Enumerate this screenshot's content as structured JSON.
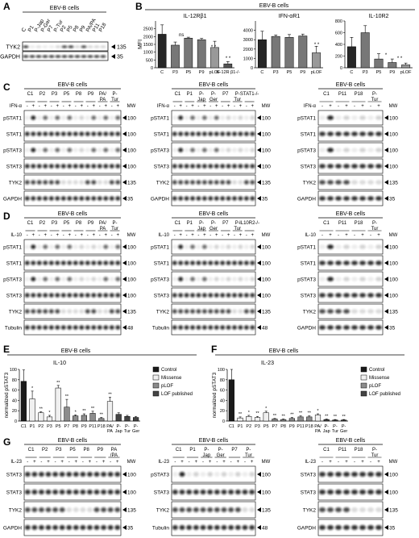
{
  "common": {
    "ebv_b_cells": "EBV-B cells",
    "mw": "MW",
    "ifn_alpha": "IFN-α",
    "il10": "IL-10",
    "il23": "IL-23",
    "plus": "+",
    "minus": "-"
  },
  "panels": {
    "A": {
      "label": "A",
      "title": "EBV-B cells",
      "lanes": [
        "C",
        "P1",
        "P-Jap",
        "P-Ger",
        "P7",
        "P-Tur",
        "P2",
        "P5",
        "P8",
        "P9",
        "PA/PA",
        "P11",
        "P18"
      ],
      "rows": [
        "TYK2",
        "GAPDH"
      ],
      "mw": [
        "135",
        "35"
      ]
    },
    "B": {
      "label": "B",
      "title": "EBV-B cells",
      "ylabel": "MFI",
      "charts": [
        {
          "title": "IL-12Rβ1",
          "categories": [
            "C",
            "P3",
            "P5",
            "P9",
            "pLOF",
            "IL-12R β1-/-"
          ],
          "ylim": [
            0,
            3000
          ],
          "yticks": [
            "0",
            "500",
            "1000",
            "1500",
            "2000",
            "2500"
          ]
        },
        {
          "title": "IFN-αR1",
          "categories": [
            "C",
            "P3",
            "P5",
            "P9",
            "pLOF"
          ],
          "ylim": [
            0,
            5000
          ],
          "yticks": [
            "0",
            "1000",
            "2000",
            "3000",
            "4000"
          ]
        },
        {
          "title": "IL-10R2",
          "categories": [
            "C",
            "P3",
            "P5",
            "P9",
            "pLOF"
          ],
          "ylim": [
            0,
            800
          ],
          "yticks": [
            "0",
            "200",
            "400",
            "600",
            "800"
          ]
        }
      ],
      "ns": "ns",
      "star": "*",
      "star2": "* *"
    },
    "C": {
      "label": "C",
      "blot1": {
        "title": "EBV-B cells",
        "groups": [
          "C1",
          "P2",
          "P3",
          "P5",
          "P8",
          "P9",
          "PA/ PA",
          "P- Tur"
        ],
        "rows": [
          "pSTAT1",
          "STAT1",
          "pSTAT3",
          "STAT3",
          "TYK2",
          "GAPDH"
        ],
        "mw": [
          "100",
          "100",
          "100",
          "100",
          "135",
          "35"
        ]
      },
      "blot2": {
        "title": "EBV-B cells",
        "groups": [
          "C1",
          "P1",
          "P- Jap",
          "P- Ger",
          "P7",
          "P- Tur",
          "STAT1-/-"
        ],
        "rows": [
          "pSTAT1",
          "STAT1",
          "pSTAT3",
          "STAT3",
          "TYK2",
          "GAPDH"
        ],
        "mw": [
          "100",
          "100",
          "100",
          "100",
          "135",
          "35"
        ]
      },
      "blot3": {
        "title": "EBV-B cells",
        "groups": [
          "C1",
          "P11",
          "P18",
          "P- Tur"
        ],
        "rows": [
          "pSTAT1",
          "STAT1",
          "pSTAT3",
          "STAT3",
          "TYK2",
          "GAPDH"
        ],
        "mw": [
          "100",
          "100",
          "100",
          "100",
          "135",
          "35"
        ]
      }
    },
    "D": {
      "label": "D",
      "blot1": {
        "title": "EBV-B cells",
        "groups": [
          "C1",
          "P2",
          "P3",
          "P5",
          "P8",
          "P9",
          "PA/ PA",
          "P- Tur"
        ],
        "rows": [
          "pSTAT1",
          "STAT1",
          "pSTAT3",
          "STAT3",
          "TYK2",
          "Tubulin"
        ],
        "mw": [
          "100",
          "100",
          "100",
          "100",
          "135",
          "48"
        ]
      },
      "blot2": {
        "title": "EBV-B cells",
        "groups": [
          "C1",
          "P1",
          "P- Jap",
          "P- Ger",
          "P7",
          "P- Tur",
          "IL10R2-/-"
        ],
        "rows": [
          "pSTAT1",
          "STAT1",
          "pSTAT3",
          "STAT3",
          "TYK2",
          "Tubulin"
        ],
        "mw": [
          "100",
          "100",
          "100",
          "100",
          "135",
          "48"
        ]
      },
      "blot3": {
        "title": "EBV-B cells",
        "groups": [
          "C1",
          "P11",
          "P18",
          "P- Tur"
        ],
        "rows": [
          "pSTAT1",
          "STAT1",
          "pSTAT3",
          "STAT3",
          "TYK2",
          "GAPDH"
        ],
        "mw": [
          "100",
          "100",
          "100",
          "100",
          "135",
          "35"
        ]
      }
    },
    "E": {
      "label": "E",
      "title": "EBV-B cells",
      "subtitle": "IL-10",
      "ylabel": "normalized pSTAT3",
      "yticks": [
        "0",
        "20",
        "40",
        "60",
        "80",
        "100"
      ],
      "legend": [
        "Control",
        "Missense",
        "pLOF",
        "LOF published"
      ]
    },
    "F": {
      "label": "F",
      "title": "EBV-B cells",
      "subtitle": "IL-23",
      "ylabel": "normalized pSTAT3",
      "yticks": [
        "0",
        "20",
        "40",
        "60",
        "80",
        "100"
      ],
      "legend": [
        "Control",
        "Missense",
        "pLOF",
        "LOF published"
      ]
    },
    "G": {
      "label": "G",
      "blot1": {
        "title": "EBV-B cells",
        "groups": [
          "C1",
          "P2",
          "P3",
          "P5",
          "P8",
          "P9",
          "PA /PA"
        ],
        "rows": [
          "STAT3",
          "STAT3",
          "TYK2",
          "GAPDH"
        ],
        "mw": [
          "100",
          "100",
          "135",
          "35"
        ]
      },
      "blot2": {
        "title": "EBV-B cells",
        "groups": [
          "C1",
          "P1",
          "P- Jap",
          "P- Ger",
          "P7",
          "P- Tur"
        ],
        "rows": [
          "pSTAT3",
          "STAT3",
          "TYK2",
          "Tubulin"
        ],
        "mw": [
          "100",
          "100",
          "135",
          "48"
        ]
      },
      "blot3": {
        "title": "EBV-B cells",
        "groups": [
          "C1",
          "P11",
          "P18",
          "P- Tur"
        ],
        "rows": [
          "STAT3",
          "STAT3",
          "TYK2",
          "GAPDH"
        ],
        "mw": [
          "100",
          "100",
          "135",
          "35"
        ]
      }
    }
  },
  "chart_data": [
    {
      "type": "bar",
      "title": "IL-12Rβ1",
      "ylabel": "MFI",
      "categories": [
        "C",
        "P3",
        "P5",
        "P9",
        "pLOF",
        "IL-12R β1-/-"
      ],
      "values": [
        2150,
        1450,
        1900,
        1800,
        1300,
        250
      ],
      "errors": [
        600,
        200,
        60,
        80,
        400,
        150
      ],
      "ylim": [
        0,
        3000
      ],
      "annotations": [
        "ns",
        "* *",
        "* *"
      ]
    },
    {
      "type": "bar",
      "title": "IFN-αR1",
      "categories": [
        "C",
        "P3",
        "P5",
        "P9",
        "pLOF"
      ],
      "values": [
        3000,
        3350,
        3250,
        3400,
        1600
      ],
      "errors": [
        900,
        150,
        300,
        200,
        700
      ],
      "ylim": [
        0,
        5000
      ],
      "annotations": [
        "* *"
      ]
    },
    {
      "type": "bar",
      "title": "IL-10R2",
      "categories": [
        "C",
        "P3",
        "P5",
        "P9",
        "pLOF"
      ],
      "values": [
        360,
        600,
        150,
        90,
        50
      ],
      "errors": [
        160,
        120,
        90,
        60,
        30
      ],
      "ylim": [
        0,
        800
      ],
      "annotations": [
        "*",
        "* *"
      ]
    },
    {
      "type": "bar",
      "title": "EBV-B cells",
      "subtitle": "IL-10",
      "ylabel": "normalized pSTAT3",
      "ylim": [
        0,
        100
      ],
      "categories": [
        "C1",
        "P1",
        "P2",
        "P3",
        "P5",
        "P7",
        "P8",
        "P9",
        "P11",
        "P18",
        "PA/ PA",
        "P- Jap",
        "P- Tur",
        "P- Ger"
      ],
      "values": [
        77,
        43,
        16,
        8,
        64,
        27,
        10,
        11,
        15,
        5,
        38,
        13,
        9,
        7
      ],
      "errors": [
        22,
        15,
        2,
        3,
        5,
        15,
        2,
        3,
        4,
        2,
        8,
        3,
        2,
        2
      ],
      "groups": [
        "Control",
        "Missense",
        "Missense",
        "Missense",
        "Missense",
        "pLOF",
        "pLOF",
        "pLOF",
        "pLOF",
        "pLOF",
        "Missense",
        "LOF published",
        "LOF published",
        "LOF published"
      ],
      "annotations": [
        "*",
        "**",
        "*",
        "**",
        "**",
        "*",
        "**",
        "**",
        "**",
        "**"
      ],
      "legend": [
        "Control",
        "Missense",
        "pLOF",
        "LOF published"
      ],
      "legend_position": "right"
    },
    {
      "type": "bar",
      "title": "EBV-B cells",
      "subtitle": "IL-23",
      "ylabel": "normalized pSTAT3",
      "ylim": [
        0,
        100
      ],
      "categories": [
        "C1",
        "P1",
        "P2",
        "P3",
        "P5",
        "P7",
        "P8",
        "P9",
        "P11",
        "P18",
        "PA/ PA",
        "P- Jap",
        "P- Tur",
        "P- Ger"
      ],
      "values": [
        80,
        6,
        9,
        7,
        16,
        4,
        3,
        5,
        8,
        8,
        12,
        3,
        2,
        2
      ],
      "errors": [
        20,
        2,
        2,
        2,
        3,
        1,
        1,
        2,
        2,
        2,
        2,
        1,
        1,
        1
      ],
      "groups": [
        "Control",
        "Missense",
        "Missense",
        "Missense",
        "Missense",
        "pLOF",
        "pLOF",
        "pLOF",
        "pLOF",
        "pLOF",
        "Missense",
        "LOF published",
        "LOF published",
        "LOF published"
      ],
      "annotations": [
        "**",
        "*",
        "**",
        "*",
        "**",
        "**",
        "**",
        "**",
        "**",
        "*",
        "**",
        "**",
        "**"
      ],
      "legend": [
        "Control",
        "Missense",
        "pLOF",
        "LOF published"
      ],
      "legend_position": "right"
    }
  ]
}
